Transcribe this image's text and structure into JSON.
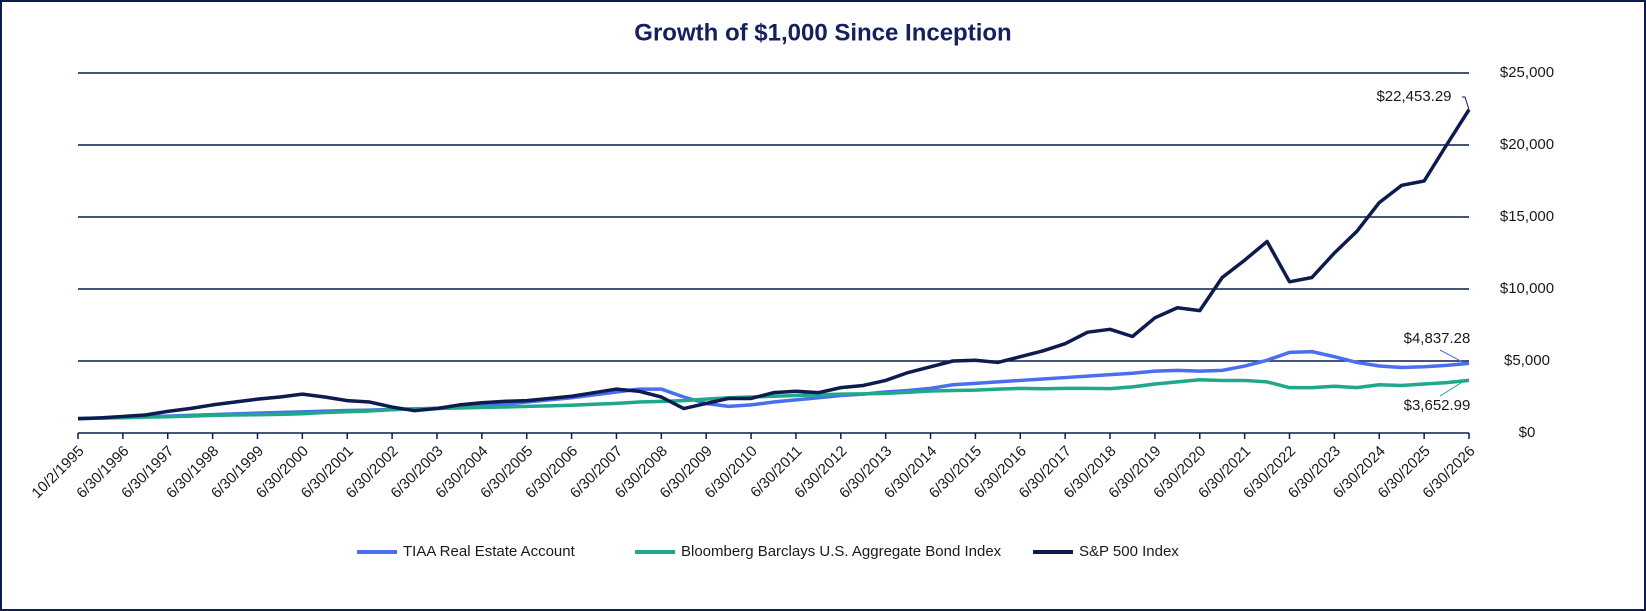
{
  "chart_data": {
    "type": "line",
    "title": "Growth of $1,000 Since Inception",
    "categories": [
      "10/2/1995",
      null,
      "6/30/1996",
      null,
      "6/30/1997",
      null,
      "6/30/1998",
      null,
      "6/30/1999",
      null,
      "6/30/2000",
      null,
      "6/30/2001",
      null,
      "6/30/2002",
      null,
      "6/30/2003",
      null,
      "6/30/2004",
      null,
      "6/30/2005",
      null,
      "6/30/2006",
      null,
      "6/30/2007",
      null,
      "6/30/2008",
      null,
      "6/30/2009",
      null,
      "6/30/2010",
      null,
      "6/30/2011",
      null,
      "6/30/2012",
      null,
      "6/30/2013",
      null,
      "6/30/2014",
      null,
      "6/30/2015",
      null,
      "6/30/2016",
      null,
      "6/30/2017",
      null,
      "6/30/2018",
      null,
      "6/30/2019",
      null,
      "6/30/2020",
      null,
      "6/30/2021",
      null,
      "6/30/2022",
      null,
      "6/30/2023",
      null,
      "6/30/2024",
      null,
      "6/30/2025",
      null,
      "6/30/2026"
    ],
    "series": [
      {
        "name": "TIAA Real Estate Account",
        "color": "#4a6ef0",
        "values": [
          1000,
          1030,
          1080,
          1120,
          1170,
          1220,
          1280,
          1330,
          1380,
          1420,
          1470,
          1520,
          1560,
          1590,
          1630,
          1670,
          1720,
          1800,
          1900,
          2000,
          2150,
          2300,
          2450,
          2650,
          2850,
          3050,
          3050,
          2500,
          2050,
          1850,
          1950,
          2150,
          2300,
          2450,
          2600,
          2700,
          2850,
          2950,
          3100,
          3350,
          3450,
          3550,
          3650,
          3750,
          3850,
          3950,
          4050,
          4150,
          4300,
          4350,
          4300,
          4350,
          4650,
          5050,
          5600,
          5650,
          5300,
          4900,
          4650,
          4550,
          4600,
          4700,
          4837.28
        ],
        "value_labels": [
          null,
          null,
          null,
          null,
          null,
          null,
          null,
          null,
          null,
          null,
          null,
          null,
          null,
          null,
          null,
          null,
          null,
          null,
          null,
          null,
          null,
          null,
          null,
          null,
          null,
          null,
          null,
          null,
          null,
          null,
          null,
          null,
          null,
          null,
          null,
          null,
          null,
          null,
          null,
          null,
          null,
          null,
          null,
          null,
          null,
          null,
          null,
          null,
          null,
          null,
          null,
          null,
          null,
          null,
          null,
          null,
          null,
          null,
          null,
          null,
          null,
          null,
          "$4,837.28"
        ]
      },
      {
        "name": "Bloomberg Barclays U.S. Aggregate Bond Index",
        "color": "#1fa88a",
        "values": [
          1000,
          1040,
          1060,
          1100,
          1130,
          1170,
          1220,
          1250,
          1270,
          1290,
          1340,
          1420,
          1480,
          1530,
          1620,
          1680,
          1700,
          1740,
          1780,
          1810,
          1850,
          1880,
          1930,
          2000,
          2060,
          2150,
          2200,
          2250,
          2350,
          2450,
          2500,
          2550,
          2600,
          2650,
          2700,
          2720,
          2750,
          2830,
          2920,
          2950,
          2980,
          3050,
          3100,
          3070,
          3100,
          3100,
          3080,
          3200,
          3400,
          3550,
          3700,
          3650,
          3650,
          3550,
          3150,
          3150,
          3250,
          3150,
          3350,
          3300,
          3400,
          3500,
          3652.99
        ],
        "value_labels": [
          null,
          null,
          null,
          null,
          null,
          null,
          null,
          null,
          null,
          null,
          null,
          null,
          null,
          null,
          null,
          null,
          null,
          null,
          null,
          null,
          null,
          null,
          null,
          null,
          null,
          null,
          null,
          null,
          null,
          null,
          null,
          null,
          null,
          null,
          null,
          null,
          null,
          null,
          null,
          null,
          null,
          null,
          null,
          null,
          null,
          null,
          null,
          null,
          null,
          null,
          null,
          null,
          null,
          null,
          null,
          null,
          null,
          null,
          null,
          null,
          null,
          null,
          "$3,652.99"
        ]
      },
      {
        "name": "S&P 500 Index",
        "color": "#0d1b4f",
        "values": [
          1000,
          1050,
          1150,
          1250,
          1500,
          1700,
          1950,
          2150,
          2350,
          2500,
          2700,
          2500,
          2250,
          2150,
          1800,
          1550,
          1700,
          1950,
          2100,
          2200,
          2250,
          2400,
          2550,
          2800,
          3050,
          2900,
          2500,
          1700,
          2050,
          2400,
          2400,
          2800,
          2900,
          2800,
          3150,
          3300,
          3650,
          4200,
          4600,
          5000,
          5050,
          4900,
          5300,
          5700,
          6200,
          7000,
          7200,
          6700,
          8000,
          8700,
          8500,
          10800,
          12000,
          13300,
          10500,
          10800,
          12500,
          14000,
          16000,
          17200,
          17500,
          20000,
          22453.29
        ],
        "value_labels": [
          null,
          null,
          null,
          null,
          null,
          null,
          null,
          null,
          null,
          null,
          null,
          null,
          null,
          null,
          null,
          null,
          null,
          null,
          null,
          null,
          null,
          null,
          null,
          null,
          null,
          null,
          null,
          null,
          null,
          null,
          null,
          null,
          null,
          null,
          null,
          null,
          null,
          null,
          null,
          null,
          null,
          null,
          null,
          null,
          null,
          null,
          null,
          null,
          null,
          null,
          null,
          null,
          null,
          null,
          null,
          null,
          null,
          null,
          null,
          null,
          null,
          null,
          "$22,453.29"
        ]
      }
    ],
    "ylim": [
      0,
      25000
    ],
    "yticks": [
      {
        "value": 0,
        "label": "$0"
      },
      {
        "value": 5000,
        "label": "$5,000"
      },
      {
        "value": 10000,
        "label": "$10,000"
      },
      {
        "value": 15000,
        "label": "$15,000"
      },
      {
        "value": 20000,
        "label": "$20,000"
      },
      {
        "value": 25000,
        "label": "$25,000"
      }
    ],
    "grid": true,
    "legend": "bottom"
  }
}
